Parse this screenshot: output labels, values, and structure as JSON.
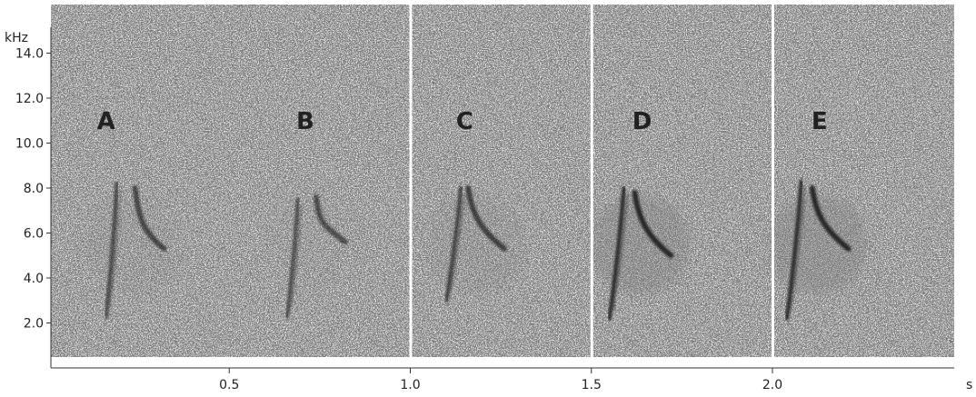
{
  "chart_data": {
    "type": "spectrogram",
    "title": "",
    "xlabel": "s",
    "ylabel": "kHz",
    "xlim": [
      0,
      2.5
    ],
    "ylim": [
      0,
      15
    ],
    "x_ticks": [
      {
        "value": 0.5,
        "label": "0.5"
      },
      {
        "value": 1.0,
        "label": "1.0"
      },
      {
        "value": 1.5,
        "label": "1.5"
      },
      {
        "value": 2.0,
        "label": "2.0"
      }
    ],
    "y_ticks": [
      {
        "value": 2,
        "label": "2.0"
      },
      {
        "value": 4,
        "label": "4.0"
      },
      {
        "value": 6,
        "label": "6.0"
      },
      {
        "value": 8,
        "label": "8.0"
      },
      {
        "value": 10,
        "label": "10.0"
      },
      {
        "value": 12,
        "label": "12.0"
      },
      {
        "value": 14,
        "label": "14.0"
      }
    ],
    "panel_dividers": [
      1.0,
      1.5,
      2.0
    ],
    "calls": [
      {
        "label": "A",
        "label_t": 0.16,
        "upsweep": {
          "t_start": 0.16,
          "t_end": 0.19,
          "f_start": 2.3,
          "f_end": 8.2
        },
        "downsweep": {
          "t_start": 0.24,
          "t_end": 0.32,
          "f_start": 8.0,
          "f_end": 5.3
        },
        "intensity": 0.75
      },
      {
        "label": "B",
        "label_t": 0.71,
        "upsweep": {
          "t_start": 0.66,
          "t_end": 0.69,
          "f_start": 2.3,
          "f_end": 7.5
        },
        "downsweep": {
          "t_start": 0.74,
          "t_end": 0.82,
          "f_start": 7.6,
          "f_end": 5.6
        },
        "intensity": 0.7
      },
      {
        "label": "C",
        "label_t": 1.15,
        "upsweep": {
          "t_start": 1.1,
          "t_end": 1.14,
          "f_start": 3.0,
          "f_end": 8.0
        },
        "downsweep": {
          "t_start": 1.16,
          "t_end": 1.26,
          "f_start": 8.0,
          "f_end": 5.3
        },
        "intensity": 0.8
      },
      {
        "label": "D",
        "label_t": 1.64,
        "upsweep": {
          "t_start": 1.55,
          "t_end": 1.59,
          "f_start": 2.2,
          "f_end": 8.0
        },
        "downsweep": {
          "t_start": 1.62,
          "t_end": 1.72,
          "f_start": 7.8,
          "f_end": 5.0
        },
        "intensity": 1.0
      },
      {
        "label": "E",
        "label_t": 2.13,
        "upsweep": {
          "t_start": 2.04,
          "t_end": 2.08,
          "f_start": 2.2,
          "f_end": 8.3
        },
        "downsweep": {
          "t_start": 2.11,
          "t_end": 2.21,
          "f_start": 8.0,
          "f_end": 5.3
        },
        "intensity": 1.0
      }
    ],
    "colors": {
      "ink": "#1a1a1a",
      "noise": "#7a7a7a",
      "axis": "#333333",
      "background": "#ffffff"
    }
  }
}
